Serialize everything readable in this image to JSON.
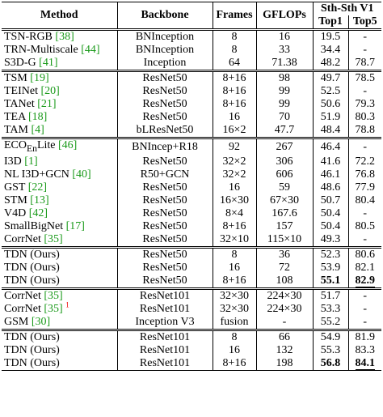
{
  "table": {
    "header": {
      "method": "Method",
      "backbone": "Backbone",
      "frames": "Frames",
      "gflops": "GFLOPs",
      "dataset": "Sth-Sth V1",
      "top1": "Top1",
      "top5": "Top5"
    },
    "groups": [
      [
        {
          "method": "TSN-RGB",
          "cite": "[38]",
          "backbone": "BNInception",
          "frames": "8",
          "gflops": "16",
          "top1": "19.5",
          "top5": "-"
        },
        {
          "method": "TRN-Multiscale",
          "cite": "[44]",
          "backbone": "BNInception",
          "frames": "8",
          "gflops": "33",
          "top1": "34.4",
          "top5": "-"
        },
        {
          "method": "S3D-G",
          "cite": "[41]",
          "backbone": "Inception",
          "frames": "64",
          "gflops": "71.38",
          "top1": "48.2",
          "top5": "78.7"
        }
      ],
      [
        {
          "method": "TSM",
          "cite": "[19]",
          "backbone": "ResNet50",
          "frames": "8+16",
          "gflops": "98",
          "top1": "49.7",
          "top5": "78.5"
        },
        {
          "method": "TEINet",
          "cite": "[20]",
          "backbone": "ResNet50",
          "frames": "8+16",
          "gflops": "99",
          "top1": "52.5",
          "top5": "-"
        },
        {
          "method": "TANet",
          "cite": "[21]",
          "backbone": "ResNet50",
          "frames": "8+16",
          "gflops": "99",
          "top1": "50.6",
          "top5": "79.3"
        },
        {
          "method": "TEA",
          "cite": "[18]",
          "backbone": "ResNet50",
          "frames": "16",
          "gflops": "70",
          "top1": "51.9",
          "top5": "80.3"
        },
        {
          "method": "TAM",
          "cite": "[4]",
          "backbone": "bLResNet50",
          "frames": "16×2",
          "gflops": "47.7",
          "top1": "48.4",
          "top5": "78.8"
        }
      ],
      [
        {
          "method": "ECO",
          "sub": "En",
          "suffix": "Lite",
          "cite": "[46]",
          "backbone": "BNIncep+R18",
          "frames": "92",
          "gflops": "267",
          "top1": "46.4",
          "top5": "-"
        },
        {
          "method": "I3D",
          "cite": "[1]",
          "backbone": "ResNet50",
          "frames": "32×2",
          "gflops": "306",
          "top1": "41.6",
          "top5": "72.2"
        },
        {
          "method": "NL I3D+GCN",
          "cite": "[40]",
          "backbone": "R50+GCN",
          "frames": "32×2",
          "gflops": "606",
          "top1": "46.1",
          "top5": "76.8"
        },
        {
          "method": "GST",
          "cite": "[22]",
          "backbone": "ResNet50",
          "frames": "16",
          "gflops": "59",
          "top1": "48.6",
          "top5": "77.9"
        },
        {
          "method": "STM",
          "cite": "[13]",
          "backbone": "ResNet50",
          "frames": "16×30",
          "gflops": "67×30",
          "top1": "50.7",
          "top5": "80.4"
        },
        {
          "method": "V4D",
          "cite": "[42]",
          "backbone": "ResNet50",
          "frames": "8×4",
          "gflops": "167.6",
          "top1": "50.4",
          "top5": "-"
        },
        {
          "method": "SmallBigNet",
          "cite": "[17]",
          "backbone": "ResNet50",
          "frames": "8+16",
          "gflops": "157",
          "top1": "50.4",
          "top5": "80.5"
        },
        {
          "method": "CorrNet",
          "cite": "[35]",
          "backbone": "ResNet50",
          "frames": "32×10",
          "gflops": "115×10",
          "top1": "49.3",
          "top5": "-"
        }
      ],
      [
        {
          "method": "TDN (Ours)",
          "backbone": "ResNet50",
          "frames": "8",
          "gflops": "36",
          "top1": "52.3",
          "top5": "80.6"
        },
        {
          "method": "TDN (Ours)",
          "backbone": "ResNet50",
          "frames": "16",
          "gflops": "72",
          "top1": "53.9",
          "top5": "82.1"
        },
        {
          "method": "TDN (Ours)",
          "backbone": "ResNet50",
          "frames": "8+16",
          "gflops": "108",
          "top1": "55.1",
          "top5": "82.9",
          "best": true
        }
      ],
      [
        {
          "method": "CorrNet",
          "cite": "[35]",
          "backbone": "ResNet101",
          "frames": "32×30",
          "gflops": "224×30",
          "top1": "51.7",
          "top5": "-"
        },
        {
          "method": "CorrNet",
          "cite": "[35]",
          "note": "1",
          "backbone": "ResNet101",
          "frames": "32×30",
          "gflops": "224×30",
          "top1": "53.3",
          "top5": "-"
        },
        {
          "method": "GSM",
          "cite": "[30]",
          "backbone": "Inception V3",
          "frames": "fusion",
          "gflops": "-",
          "top1": "55.2",
          "top5": "-"
        }
      ],
      [
        {
          "method": "TDN (Ours)",
          "backbone": "ResNet101",
          "frames": "8",
          "gflops": "66",
          "top1": "54.9",
          "top5": "81.9"
        },
        {
          "method": "TDN (Ours)",
          "backbone": "ResNet101",
          "frames": "16",
          "gflops": "132",
          "top1": "55.3",
          "top5": "83.3"
        },
        {
          "method": "TDN (Ours)",
          "backbone": "ResNet101",
          "frames": "8+16",
          "gflops": "198",
          "top1": "56.8",
          "top5": "84.1",
          "best": true
        }
      ]
    ]
  }
}
